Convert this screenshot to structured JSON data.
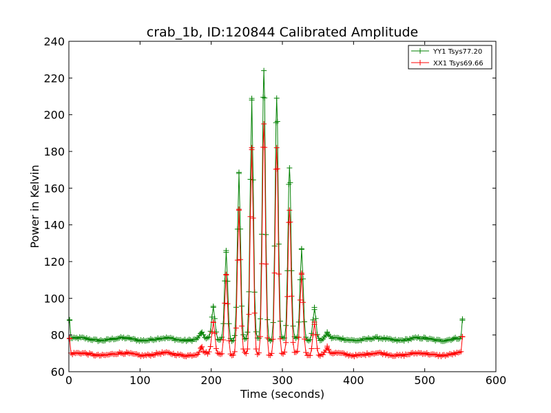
{
  "chart_data": {
    "type": "line",
    "title": "crab_1b, ID:120844 Calibrated Amplitude",
    "xlabel": "Time (seconds)",
    "ylabel": "Power in Kelvin",
    "xlim": [
      0,
      600
    ],
    "ylim": [
      60,
      240
    ],
    "xticks": [
      0,
      100,
      200,
      300,
      400,
      500,
      600
    ],
    "yticks": [
      60,
      80,
      100,
      120,
      140,
      160,
      180,
      200,
      220,
      240
    ],
    "grid": false,
    "legend_position": "top-right",
    "marker": "+",
    "baseline_series_note": "Both series are sampled roughly every 2 s with a noisy flat baseline between the listed peaks",
    "series": [
      {
        "name": "YY1 Tsys77.20",
        "color": "#008000",
        "baseline": 77.7,
        "time_range": [
          1,
          553
        ],
        "peaks": [
          {
            "x": 1,
            "y": 88
          },
          {
            "x": 186,
            "y": 81
          },
          {
            "x": 203,
            "y": 95
          },
          {
            "x": 221,
            "y": 126
          },
          {
            "x": 239,
            "y": 168
          },
          {
            "x": 257,
            "y": 208
          },
          {
            "x": 274,
            "y": 224
          },
          {
            "x": 292,
            "y": 209
          },
          {
            "x": 310,
            "y": 171
          },
          {
            "x": 327,
            "y": 127
          },
          {
            "x": 345,
            "y": 95
          },
          {
            "x": 363,
            "y": 81
          },
          {
            "x": 553,
            "y": 88
          }
        ]
      },
      {
        "name": "XX1 Tsys69.66",
        "color": "#ff0000",
        "baseline": 69.5,
        "time_range": [
          1,
          553
        ],
        "peaks": [
          {
            "x": 1,
            "y": 78
          },
          {
            "x": 186,
            "y": 73
          },
          {
            "x": 203,
            "y": 87
          },
          {
            "x": 221,
            "y": 113
          },
          {
            "x": 239,
            "y": 148
          },
          {
            "x": 257,
            "y": 181
          },
          {
            "x": 274,
            "y": 195
          },
          {
            "x": 292,
            "y": 182
          },
          {
            "x": 310,
            "y": 148
          },
          {
            "x": 327,
            "y": 113
          },
          {
            "x": 345,
            "y": 87
          },
          {
            "x": 363,
            "y": 73
          },
          {
            "x": 553,
            "y": 79
          }
        ]
      }
    ]
  }
}
